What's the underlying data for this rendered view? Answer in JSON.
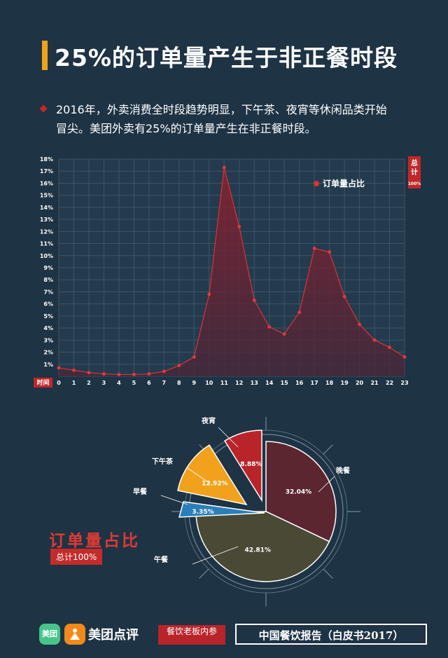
{
  "page": {
    "title": "25%的订单量产生于非正餐时段",
    "paragraph_line1": "2016年，外卖消费全时段趋势明显，下午茶、夜宵等休闲品类开始",
    "paragraph_line2": "冒尖。美团外卖有25%的订单量产生在非正餐时段。",
    "left_label": "订单量占比",
    "left_badge": "总计100%"
  },
  "footer": {
    "mt_logo_text": "美团",
    "brand": "美团点评",
    "cy_text": "餐饮老板内参",
    "report": "中国餐饮报告（白皮书2017）"
  },
  "colors": {
    "background": "#1e3344",
    "accent": "#f2a11c",
    "red": "#c0282b",
    "grid": "#3d5566"
  },
  "chart_data": [
    {
      "type": "area",
      "x": [
        0,
        1,
        2,
        3,
        4,
        5,
        6,
        7,
        8,
        9,
        10,
        11,
        12,
        13,
        14,
        15,
        16,
        17,
        18,
        19,
        20,
        21,
        22,
        23
      ],
      "series": [
        {
          "name": "订单量占比",
          "values": [
            0.7,
            0.5,
            0.3,
            0.2,
            0.15,
            0.15,
            0.2,
            0.4,
            0.9,
            1.6,
            6.8,
            17.3,
            12.4,
            6.3,
            4.1,
            3.5,
            5.3,
            10.6,
            10.3,
            6.6,
            4.3,
            3.0,
            2.4,
            1.6
          ],
          "color": "#c0282b"
        }
      ],
      "x_tick_labels": [
        "0",
        "1",
        "2",
        "3",
        "4",
        "5",
        "6",
        "7",
        "8",
        "9",
        "10",
        "11",
        "12",
        "13",
        "14",
        "15",
        "16",
        "17",
        "18",
        "19",
        "20",
        "21",
        "22",
        "23"
      ],
      "y_tick_labels": [
        "1%",
        "2%",
        "3%",
        "4%",
        "5%",
        "6%",
        "7%",
        "8%",
        "9%",
        "10%",
        "11%",
        "12%",
        "13%",
        "14%",
        "15%",
        "16%",
        "17%",
        "18%"
      ],
      "xlabel": "时间",
      "right_box_label": "总计",
      "right_box_value": "100%",
      "legend": "订单量占比",
      "ylim": [
        0,
        18
      ],
      "grid": true,
      "legend_position": "top-right"
    },
    {
      "type": "pie",
      "slices": [
        {
          "label": "晚餐",
          "value": 32.04,
          "display": "32.04%",
          "color": "#5b2630",
          "text_color": "#ffffff"
        },
        {
          "label": "午餐",
          "value": 42.81,
          "display": "42.81%",
          "color": "#4a4936",
          "text_color": "#ffffff"
        },
        {
          "label": "早餐",
          "value": 3.35,
          "display": "3.35%",
          "color": "#2a7fb8",
          "text_color": "#ffffff"
        },
        {
          "label": "下午茶",
          "value": 12.92,
          "display": "12.92%",
          "color": "#f2a11c",
          "text_color": "#ffffff"
        },
        {
          "label": "夜宵",
          "value": 8.88,
          "display": "8.88%",
          "color": "#b8242a",
          "text_color": "#ffffff"
        }
      ]
    }
  ]
}
